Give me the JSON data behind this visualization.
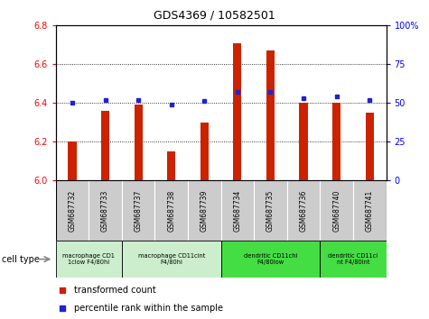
{
  "title": "GDS4369 / 10582501",
  "samples": [
    "GSM687732",
    "GSM687733",
    "GSM687737",
    "GSM687738",
    "GSM687739",
    "GSM687734",
    "GSM687735",
    "GSM687736",
    "GSM687740",
    "GSM687741"
  ],
  "red_values": [
    6.2,
    6.36,
    6.39,
    6.15,
    6.3,
    6.71,
    6.67,
    6.4,
    6.4,
    6.35
  ],
  "blue_values": [
    50,
    52,
    52,
    49,
    51,
    57,
    57,
    53,
    54,
    52
  ],
  "ylim_left": [
    6.0,
    6.8
  ],
  "ylim_right": [
    0,
    100
  ],
  "yticks_left": [
    6.0,
    6.2,
    6.4,
    6.6,
    6.8
  ],
  "yticks_right": [
    0,
    25,
    50,
    75,
    100
  ],
  "ytick_right_labels": [
    "0",
    "25",
    "50",
    "75",
    "100%"
  ],
  "cell_type_groups": [
    {
      "label": "macrophage CD1\n1clow F4/80hi",
      "start": 0,
      "end": 2,
      "color": "#cceecc"
    },
    {
      "label": "macrophage CD11cint\nF4/80hi",
      "start": 2,
      "end": 5,
      "color": "#cceecc"
    },
    {
      "label": "dendritic CD11chi\nF4/80low",
      "start": 5,
      "end": 8,
      "color": "#44dd44"
    },
    {
      "label": "dendritic CD11ci\nnt F4/80int",
      "start": 8,
      "end": 10,
      "color": "#44dd44"
    }
  ],
  "bar_color": "#cc2200",
  "dot_color": "#2222cc",
  "base_value": 6.0,
  "bg_color": "#ffffff",
  "plot_bg_color": "#ffffff",
  "sample_box_color": "#cccccc",
  "legend_red_label": "transformed count",
  "legend_blue_label": "percentile rank within the sample",
  "cell_type_label": "cell type"
}
